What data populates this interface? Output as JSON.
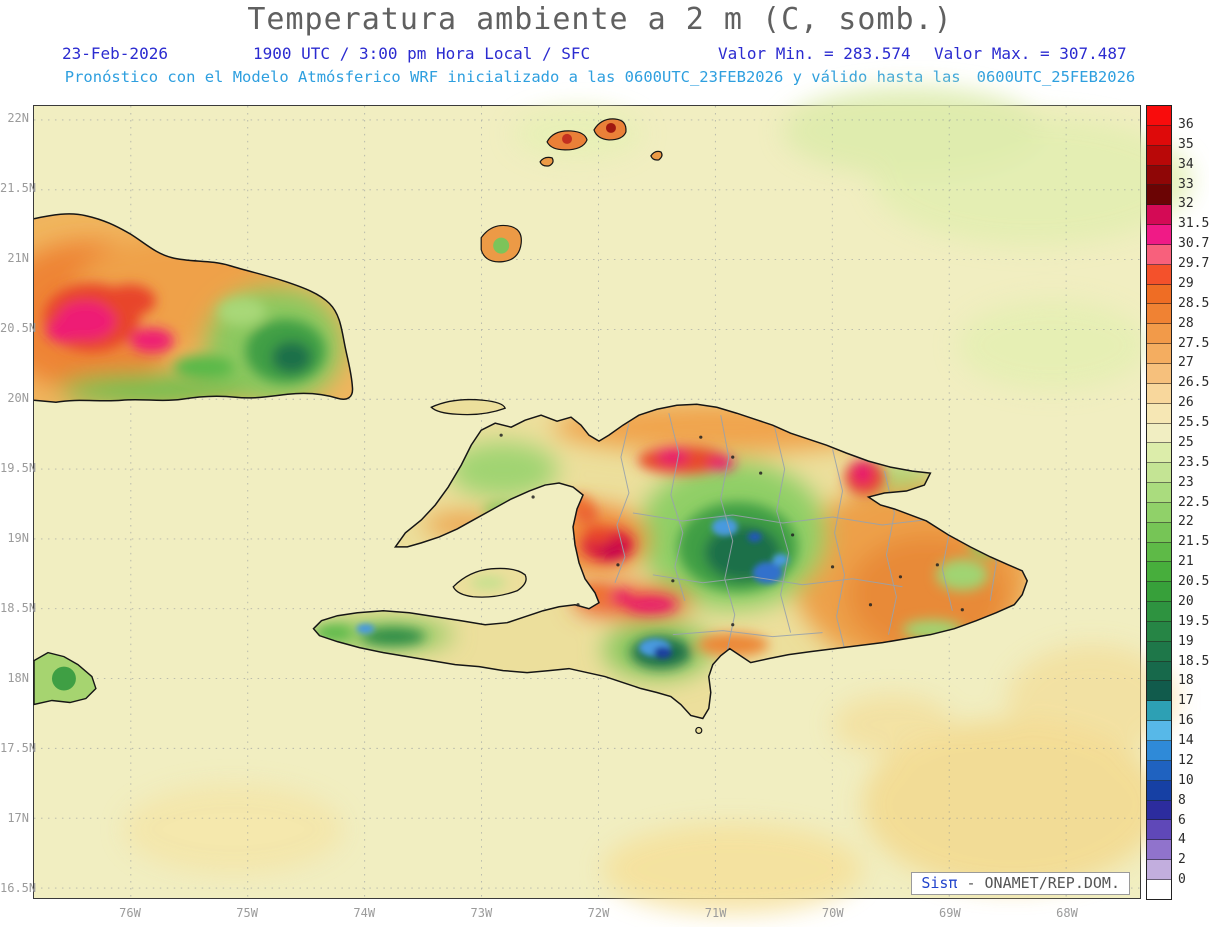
{
  "header": {
    "title": "Temperatura ambiente a 2 m (C, somb.)",
    "date": "23-Feb-2026",
    "time": "1900 UTC / 3:00 pm Hora Local / SFC",
    "valor_min": "Valor Min. = 283.574",
    "valor_max": "Valor Max. = 307.487",
    "forecast": "Pronóstico con el Modelo Atmósferico WRF inicializado a las 0600UTC_23FEB2026 y válido hasta las",
    "forecast_valid": "0600UTC_25FEB2026"
  },
  "map": {
    "lat_labels": [
      "22N",
      "21.5N",
      "21N",
      "20.5N",
      "20N",
      "19.5N",
      "19N",
      "18.5N",
      "18N",
      "17.5N",
      "17N",
      "16.5N"
    ],
    "lon_labels": [
      "76W",
      "75W",
      "74W",
      "73W",
      "72W",
      "71W",
      "70W",
      "69W",
      "68W"
    ],
    "credit_brand": "Sisπ",
    "credit_text": " - ONAMET/REP.DOM."
  },
  "colorbar": {
    "units": "C",
    "labels": [
      "36",
      "35",
      "34",
      "33",
      "32",
      "31.5",
      "30.7",
      "29.7",
      "29",
      "28.5",
      "28",
      "27.5",
      "27",
      "26.5",
      "26",
      "25.5",
      "25",
      "23.5",
      "23",
      "22.5",
      "22",
      "21.5",
      "21",
      "20.5",
      "20",
      "19.5",
      "19",
      "18.5",
      "18",
      "17",
      "16",
      "14",
      "12",
      "10",
      "8",
      "6",
      "4",
      "2",
      "0"
    ],
    "colors": [
      "#f90c0c",
      "#de0a0a",
      "#b90808",
      "#8f0606",
      "#6b0404",
      "#d40a55",
      "#f01a86",
      "#f8607c",
      "#f4512b",
      "#ef6d24",
      "#f08233",
      "#f29a49",
      "#f4ad60",
      "#f6c07c",
      "#f8d79c",
      "#f6e7b4",
      "#f1eec2",
      "#dcedaa",
      "#c4e494",
      "#aadc7e",
      "#90d169",
      "#76c556",
      "#5eba47",
      "#47ae3c",
      "#37a03a",
      "#2e9340",
      "#268545",
      "#1e7749",
      "#17694b",
      "#115b4c",
      "#2da0b4",
      "#57b8e8",
      "#2f8ad8",
      "#1f62c0",
      "#1640a4",
      "#2c2c9e",
      "#5f48b8",
      "#9073cc",
      "#c2aede",
      "#ffffff"
    ]
  }
}
